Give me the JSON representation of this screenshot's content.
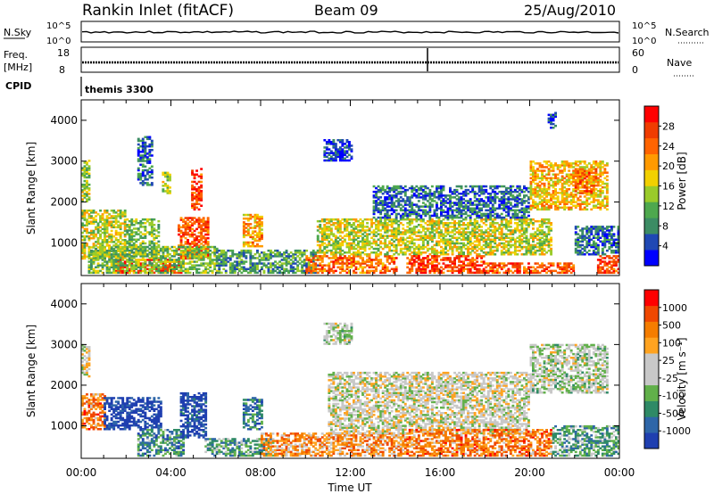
{
  "header": {
    "title": "Rankin Inlet (fitACF)",
    "beam": "Beam 09",
    "date": "25/Aug/2010"
  },
  "strips": {
    "nsky_label": "N.Sky",
    "nsky_ticks": [
      "10^5",
      "10^0"
    ],
    "nsearch_label": "N.Search",
    "nsearch_ticks": [
      "10^5",
      "10^0"
    ],
    "freq_label": "Freq.",
    "freq_unit": "[MHz]",
    "freq_ticks": [
      "18",
      "8"
    ],
    "nave_label": "Nave",
    "nave_ticks": [
      "60",
      "0"
    ],
    "cpid_label": "CPID",
    "cpid_value": "themis 3300"
  },
  "colors": {
    "power_scale": [
      "#0000ff",
      "#1f48b4",
      "#3c8c64",
      "#4ea84e",
      "#9acb2a",
      "#f2d000",
      "#ff9a00",
      "#ff6400",
      "#f03c00",
      "#ff0000"
    ],
    "velocity_scale": [
      "#1f3fb0",
      "#2e66a8",
      "#2f8a66",
      "#61b04a",
      "#c8c8c8",
      "#c8c8c8",
      "#ffa320",
      "#f57d00",
      "#f04800",
      "#ff0000"
    ]
  },
  "chart_data": [
    {
      "type": "heatmap",
      "title": "Power",
      "xlabel": "",
      "ylabel": "Slant Range [km]",
      "xlim": [
        "00:00",
        "24:00"
      ],
      "ylim": [
        200,
        4500
      ],
      "x_ticks": [
        "00:00",
        "04:00",
        "08:00",
        "12:00",
        "16:00",
        "20:00",
        "00:00"
      ],
      "y_ticks": [
        1000,
        2000,
        3000,
        4000
      ],
      "colorbar": {
        "label": "Power [dB]",
        "ticks": [
          "28",
          "24",
          "20",
          "16",
          "12",
          "8",
          "4"
        ],
        "range": [
          0,
          30
        ]
      },
      "regions": [
        {
          "t": [
            0.0,
            0.4
          ],
          "r": [
            2000,
            3000
          ],
          "level": 0.45
        },
        {
          "t": [
            0.0,
            2.0
          ],
          "r": [
            600,
            1800
          ],
          "level": 0.5
        },
        {
          "t": [
            2.0,
            3.5
          ],
          "r": [
            700,
            1600
          ],
          "level": 0.4
        },
        {
          "t": [
            2.5,
            3.2
          ],
          "r": [
            2400,
            3600
          ],
          "level": 0.2
        },
        {
          "t": [
            3.6,
            4.0
          ],
          "r": [
            2200,
            2700
          ],
          "level": 0.45
        },
        {
          "t": [
            4.3,
            5.6
          ],
          "r": [
            600,
            1600
          ],
          "level": 0.8
        },
        {
          "t": [
            4.9,
            5.3
          ],
          "r": [
            1800,
            2800
          ],
          "level": 0.85
        },
        {
          "t": [
            7.2,
            8.0
          ],
          "r": [
            900,
            1700
          ],
          "level": 0.65
        },
        {
          "t": [
            1.5,
            4.5
          ],
          "r": [
            250,
            600
          ],
          "level": 0.9
        },
        {
          "t": [
            0.3,
            6.0
          ],
          "r": [
            250,
            900
          ],
          "level": 0.4
        },
        {
          "t": [
            6.0,
            10.5
          ],
          "r": [
            250,
            800
          ],
          "level": 0.3
        },
        {
          "t": [
            10.8,
            12.0
          ],
          "r": [
            3000,
            3500
          ],
          "level": 0.1
        },
        {
          "t": [
            10.0,
            14.0
          ],
          "r": [
            250,
            700
          ],
          "level": 0.75
        },
        {
          "t": [
            10.5,
            21.0
          ],
          "r": [
            700,
            1600
          ],
          "level": 0.5
        },
        {
          "t": [
            13.0,
            20.0
          ],
          "r": [
            1600,
            2400
          ],
          "level": 0.2
        },
        {
          "t": [
            14.5,
            18.0
          ],
          "r": [
            250,
            700
          ],
          "level": 0.85
        },
        {
          "t": [
            18.0,
            22.0
          ],
          "r": [
            250,
            500
          ],
          "level": 0.8
        },
        {
          "t": [
            20.0,
            23.5
          ],
          "r": [
            1800,
            3000
          ],
          "level": 0.6
        },
        {
          "t": [
            22.0,
            23.0
          ],
          "r": [
            2200,
            2800
          ],
          "level": 0.75
        },
        {
          "t": [
            20.8,
            21.2
          ],
          "r": [
            3800,
            4200
          ],
          "level": 0.1
        },
        {
          "t": [
            23.0,
            24.0
          ],
          "r": [
            250,
            700
          ],
          "level": 0.85
        },
        {
          "t": [
            22.0,
            24.0
          ],
          "r": [
            700,
            1400
          ],
          "level": 0.2
        }
      ]
    },
    {
      "type": "heatmap",
      "title": "Velocity",
      "xlabel": "Time UT",
      "ylabel": "Slant Range [km]",
      "xlim": [
        "00:00",
        "24:00"
      ],
      "ylim": [
        200,
        4500
      ],
      "x_ticks": [
        "00:00",
        "04:00",
        "08:00",
        "12:00",
        "16:00",
        "20:00",
        "00:00"
      ],
      "y_ticks": [
        1000,
        2000,
        3000,
        4000
      ],
      "colorbar": {
        "label": "Velocity [m s⁻¹]",
        "ticks": [
          "1000",
          "500",
          "100",
          "25",
          "-25",
          "-100",
          "-500",
          "-1000"
        ],
        "range": [
          -1000,
          1000
        ]
      },
      "regions": [
        {
          "t": [
            0.0,
            1.0
          ],
          "r": [
            900,
            1800
          ],
          "level": 0.75
        },
        {
          "t": [
            0.0,
            0.4
          ],
          "r": [
            2200,
            3000
          ],
          "level": 0.5
        },
        {
          "t": [
            1.0,
            3.6
          ],
          "r": [
            900,
            1700
          ],
          "level": 0.0
        },
        {
          "t": [
            2.5,
            4.5
          ],
          "r": [
            250,
            900
          ],
          "level": 0.25
        },
        {
          "t": [
            4.4,
            5.5
          ],
          "r": [
            700,
            1800
          ],
          "level": 0.05
        },
        {
          "t": [
            7.2,
            8.0
          ],
          "r": [
            900,
            1700
          ],
          "level": 0.2
        },
        {
          "t": [
            5.5,
            8.5
          ],
          "r": [
            250,
            700
          ],
          "level": 0.3
        },
        {
          "t": [
            8.0,
            14.5
          ],
          "r": [
            250,
            800
          ],
          "level": 0.7
        },
        {
          "t": [
            10.8,
            12.0
          ],
          "r": [
            3000,
            3500
          ],
          "level": 0.45
        },
        {
          "t": [
            11.0,
            20.0
          ],
          "r": [
            800,
            2300
          ],
          "level": 0.5
        },
        {
          "t": [
            14.5,
            21.0
          ],
          "r": [
            250,
            900
          ],
          "level": 0.75
        },
        {
          "t": [
            20.0,
            23.5
          ],
          "r": [
            1800,
            3000
          ],
          "level": 0.45
        },
        {
          "t": [
            21.0,
            24.0
          ],
          "r": [
            250,
            1000
          ],
          "level": 0.3
        }
      ]
    }
  ]
}
